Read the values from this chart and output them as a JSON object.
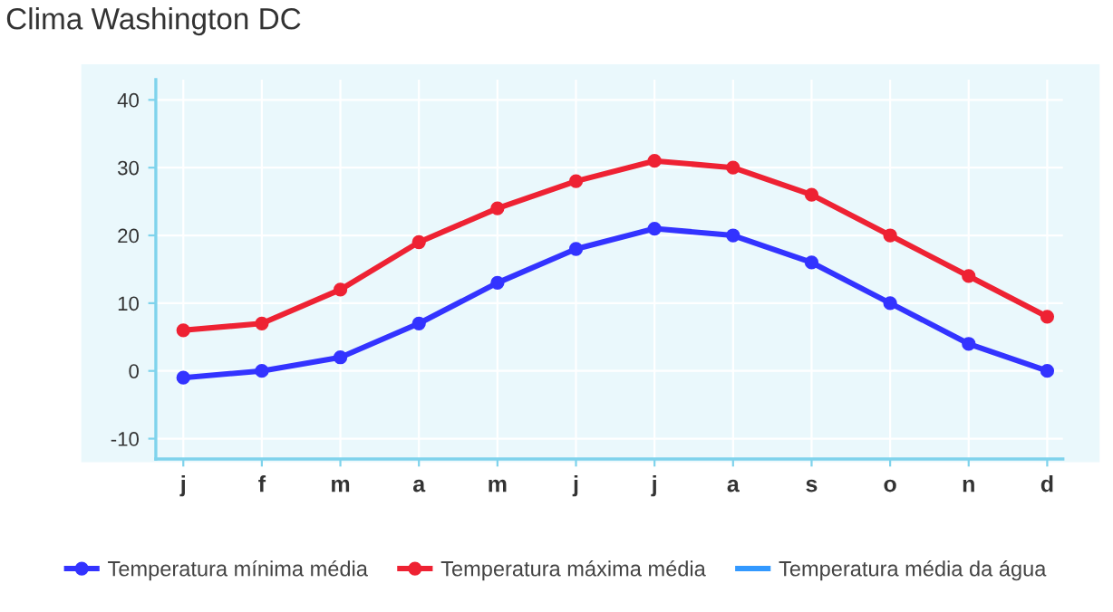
{
  "chart_data": {
    "type": "line",
    "title": "Clima Washington DC",
    "categories": [
      "j",
      "f",
      "m",
      "a",
      "m",
      "j",
      "j",
      "a",
      "s",
      "o",
      "n",
      "d"
    ],
    "series": [
      {
        "name": "Temperatura mínima média",
        "color": "#3333ff",
        "values": [
          -1,
          0,
          2,
          7,
          13,
          18,
          21,
          20,
          16,
          10,
          4,
          0
        ]
      },
      {
        "name": "Temperatura máxima média",
        "color": "#ee2233",
        "values": [
          6,
          7,
          12,
          19,
          24,
          28,
          31,
          30,
          26,
          20,
          14,
          8
        ]
      },
      {
        "name": "Temperatura média da água",
        "color": "#3399ff",
        "values": [
          null,
          null,
          null,
          null,
          null,
          null,
          null,
          null,
          null,
          null,
          null,
          null
        ]
      }
    ],
    "ylim": [
      -13,
      43
    ],
    "yticks": [
      -10,
      0,
      10,
      20,
      30,
      40
    ],
    "grid": true,
    "legend": "bottom",
    "marker": "circle",
    "line_style": "solid"
  }
}
